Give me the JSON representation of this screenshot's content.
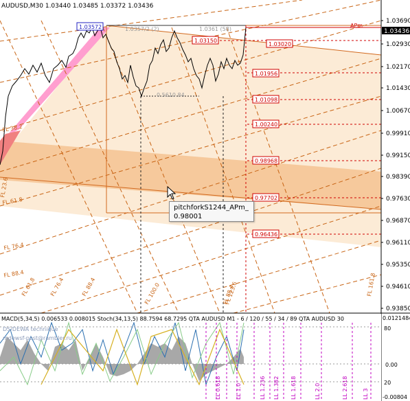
{
  "header": {
    "symbol_info": "AUDUSD,M30  1.03440 1.03485 1.03372 1.03436"
  },
  "price_axis": [
    "1.03690",
    "1.02930",
    "1.02170",
    "1.01430",
    "1.00670",
    "0.99910",
    "0.99150",
    "0.98390",
    "0.97630",
    "0.96870",
    "0.96110",
    "0.95350",
    "0.94610",
    "0.93850"
  ],
  "current_price": "1.03436",
  "level_labels": [
    {
      "value": "1.03572",
      "style": "blue"
    },
    {
      "value": "1.03150",
      "style": "red"
    },
    {
      "value": "1.03020",
      "style": "red"
    },
    {
      "value": "1.01956",
      "style": "red"
    },
    {
      "value": "1.01098",
      "style": "red"
    },
    {
      "value": "1.00240",
      "style": "red"
    },
    {
      "value": "0.98968",
      "style": "red"
    },
    {
      "value": "0.97702",
      "style": "red"
    },
    {
      "value": "0.96436",
      "style": "red"
    }
  ],
  "faint_labels": [
    "1.0357/2 (2)",
    "1.0361 (58)",
    "0.5610.84"
  ],
  "apm_label": "APm",
  "pitchfork_labels": [
    "FL 38.2",
    "FL 23.6",
    "FL 61.8",
    "FL 76.4",
    "FL 88.4",
    "FL 61.8",
    "FL 76.4",
    "FL 88.4",
    "FL 100.0",
    "FL 123.6",
    "FL 161.8",
    "FL 88.4"
  ],
  "tooltip": {
    "title": "pitchforkS1244_APm_",
    "value": "0.98001"
  },
  "indicator": {
    "title": "MACD(5,34,5) 0.006533 0.008015  Stoch(34,13,5) 88.7594 68.7295  QTA AUDUSD M1 - 6 / 120 / 55 / 34 / 89  QTA AUDUSD 30",
    "watermark_line1": "DS/DEWA  technique",
    "watermark_line2": "mdewsf-post@rambler.ru",
    "axis": [
      "0.0121484",
      "80",
      "0.00",
      "20",
      "-0.00804"
    ],
    "fib_labels": [
      "LL 0.618",
      "LL 1.0",
      "LL 1.236",
      "LL 1.382",
      "LL 1.618",
      "LL 2.0",
      "LL 2.618",
      "LL 3"
    ]
  },
  "colors": {
    "price_line": "#000000",
    "band_light": "#fbe9d3",
    "band_mid": "#f5c89a",
    "pink": "#ff8cc6",
    "level_red": "#e00000",
    "axis_bg": "#ffffff"
  }
}
